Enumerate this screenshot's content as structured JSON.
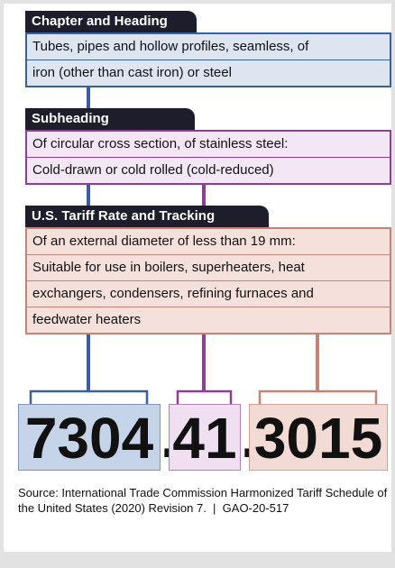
{
  "sections": [
    {
      "tab": "Chapter and Heading",
      "lines": [
        "Tubes, pipes and hollow profiles, seamless, of",
        "iron (other than cast iron) or steel"
      ]
    },
    {
      "tab": "Subheading",
      "lines": [
        "Of circular cross section, of stainless steel:",
        "Cold-drawn or cold rolled (cold-reduced)"
      ]
    },
    {
      "tab": "U.S. Tariff Rate and Tracking",
      "lines": [
        "Of an external diameter of less than 19 mm:",
        "Suitable for use in boilers, superheaters, heat",
        "exchangers, condensers, refining furnaces and",
        "feedwater heaters"
      ]
    }
  ],
  "code": {
    "parts": [
      "7304",
      "41",
      "3015"
    ],
    "separator": "."
  },
  "source": "Source: International Trade Commission Harmonized Tariff Schedule of the United States (2020) Revision 7.  |  GAO-20-517"
}
